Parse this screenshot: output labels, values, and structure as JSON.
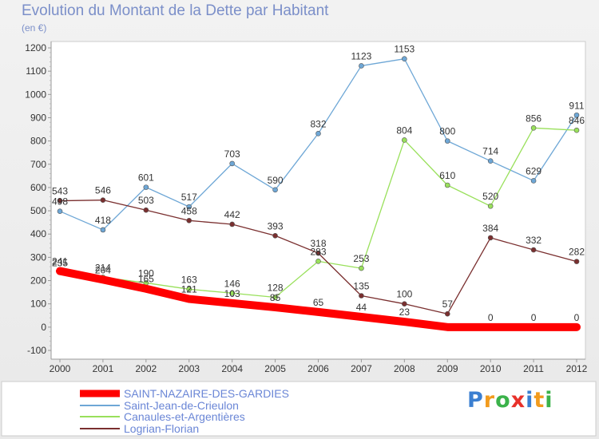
{
  "title": "Evolution du Montant de la Dette par Habitant",
  "unit_label": "(en €)",
  "logo": {
    "letters": [
      "P",
      "r",
      "o",
      "x",
      "i",
      "t",
      "i"
    ],
    "colors": [
      "#3b7fd1",
      "#f29b1d",
      "#3bb24a",
      "#e8312a",
      "#3b7fd1",
      "#f29b1d",
      "#3bb24a"
    ]
  },
  "chart_data": {
    "type": "line",
    "title": "Evolution du Montant de la Dette par Habitant",
    "ylabel": "(en €)",
    "ylim": [
      -100,
      1200
    ],
    "yticks": [
      -100,
      0,
      100,
      200,
      300,
      400,
      500,
      600,
      700,
      800,
      900,
      1000,
      1100,
      1200
    ],
    "x": [
      "2000",
      "2001",
      "2002",
      "2003",
      "2004",
      "2005",
      "2006",
      "2007",
      "2008",
      "2009",
      "2010",
      "2011",
      "2012"
    ],
    "grid": false,
    "legend": "bottom-left",
    "series": [
      {
        "name": "SAINT-NAZAIRE-DES-GARDIES",
        "color": "#ff0000",
        "values": [
          241,
          204,
          165,
          121,
          103,
          85,
          65,
          44,
          23,
          0,
          0,
          0,
          0
        ],
        "labels": [
          "241",
          "204",
          "165",
          "121",
          "103",
          "85",
          "65",
          "44",
          "23",
          "",
          "0",
          "0",
          "0"
        ]
      },
      {
        "name": "Saint-Jean-de-Crieulon",
        "color": "#6ea7d6",
        "values": [
          498,
          418,
          601,
          517,
          703,
          590,
          832,
          1123,
          1153,
          800,
          714,
          629,
          911
        ],
        "labels": [
          "498",
          "418",
          "601",
          "517",
          "703",
          "590",
          "832",
          "1123",
          "1153",
          "800",
          "714",
          "629",
          "911"
        ]
      },
      {
        "name": "Canaules-et-Argentières",
        "color": "#99e05b",
        "values": [
          235,
          214,
          190,
          163,
          146,
          128,
          283,
          253,
          804,
          610,
          520,
          856,
          846
        ],
        "labels": [
          "235",
          "214",
          "190",
          "163",
          "146",
          "128",
          "283",
          "253",
          "804",
          "610",
          "520",
          "856",
          "846"
        ]
      },
      {
        "name": "Logrian-Florian",
        "color": "#7a2f2f",
        "values": [
          543,
          546,
          503,
          458,
          442,
          393,
          318,
          135,
          100,
          57,
          384,
          332,
          282
        ],
        "labels": [
          "543",
          "546",
          "503",
          "458",
          "442",
          "393",
          "318",
          "135",
          "100",
          "57",
          "384",
          "332",
          "282"
        ]
      }
    ]
  }
}
